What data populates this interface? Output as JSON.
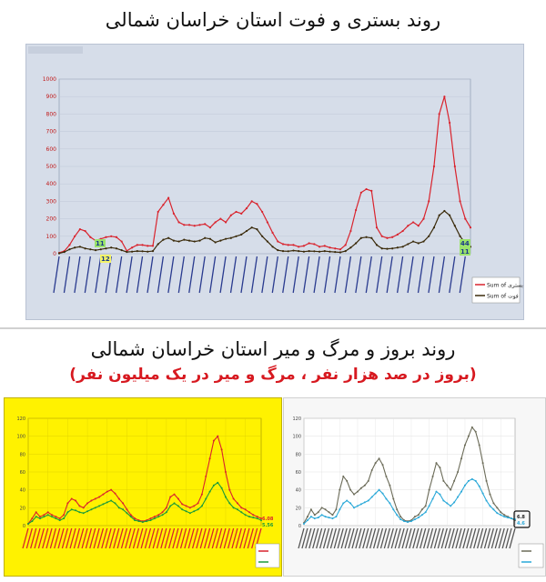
{
  "title_top": "روند بستری و فوت استان خراسان شمالی",
  "title_bottom": "روند بروز و مرگ و میر استان خراسان شمالی",
  "subtitle_bottom": "(بروز در صد هزار نفر ، مرگ و میر در یک میلیون نفر)",
  "chart_data": [
    {
      "type": "line",
      "ylim": [
        0,
        1000
      ],
      "yticks": [
        0,
        100,
        200,
        300,
        400,
        500,
        600,
        700,
        800,
        900,
        1000
      ],
      "grid": true,
      "legend_position": "right",
      "x": [
        1,
        2,
        3,
        4,
        5,
        6,
        7,
        8,
        9,
        10,
        11,
        12,
        13,
        14,
        15,
        16,
        17,
        18,
        19,
        20,
        21,
        22,
        23,
        24,
        25,
        26,
        27,
        28,
        29,
        30,
        31,
        32,
        33,
        34,
        35,
        36,
        37,
        38,
        39,
        40,
        41,
        42,
        43,
        44,
        45,
        46,
        47,
        48,
        49,
        50,
        51,
        52,
        53,
        54,
        55,
        56,
        57,
        58,
        59,
        60,
        61,
        62,
        63,
        64,
        65,
        66,
        67,
        68,
        69,
        70,
        71,
        72,
        73,
        74,
        75,
        76,
        77,
        78,
        79,
        80
      ],
      "series": [
        {
          "name": "Sum of بستری",
          "color": "#d9232d",
          "values": [
            5,
            15,
            50,
            100,
            140,
            130,
            95,
            75,
            85,
            95,
            100,
            95,
            70,
            16,
            35,
            50,
            50,
            45,
            45,
            240,
            280,
            320,
            230,
            180,
            165,
            165,
            160,
            165,
            170,
            150,
            180,
            200,
            180,
            220,
            240,
            230,
            260,
            300,
            285,
            240,
            180,
            120,
            70,
            55,
            50,
            50,
            40,
            45,
            60,
            55,
            40,
            45,
            35,
            30,
            25,
            50,
            130,
            250,
            350,
            370,
            360,
            150,
            100,
            90,
            95,
            110,
            130,
            160,
            180,
            160,
            200,
            300,
            500,
            800,
            900,
            750,
            500,
            300,
            200,
            150
          ]
        },
        {
          "name": "Sum of فوت",
          "color": "#3a2a0a",
          "values": [
            2,
            10,
            25,
            35,
            40,
            30,
            25,
            20,
            25,
            30,
            35,
            30,
            20,
            10,
            12,
            15,
            14,
            12,
            15,
            55,
            80,
            90,
            75,
            70,
            80,
            75,
            70,
            75,
            90,
            85,
            65,
            75,
            85,
            90,
            100,
            110,
            130,
            150,
            140,
            100,
            70,
            40,
            20,
            15,
            14,
            18,
            15,
            12,
            15,
            14,
            12,
            15,
            12,
            10,
            8,
            15,
            35,
            60,
            90,
            95,
            90,
            50,
            30,
            28,
            30,
            35,
            40,
            55,
            70,
            60,
            70,
            100,
            150,
            220,
            245,
            220,
            160,
            100,
            60,
            40
          ]
        }
      ],
      "annotations": [
        "11",
        "12",
        "11",
        "44"
      ]
    },
    {
      "type": "line",
      "ylim": [
        0,
        120
      ],
      "yticks": [
        0,
        20,
        40,
        60,
        80,
        100,
        120
      ],
      "grid": true,
      "legend_position": "right",
      "x": [
        1,
        2,
        3,
        4,
        5,
        6,
        7,
        8,
        9,
        10,
        11,
        12,
        13,
        14,
        15,
        16,
        17,
        18,
        19,
        20,
        21,
        22,
        23,
        24,
        25,
        26,
        27,
        28,
        29,
        30,
        31,
        32,
        33,
        34,
        35,
        36,
        37,
        38,
        39,
        40,
        41,
        42,
        43,
        44,
        45,
        46,
        47,
        48,
        49,
        50,
        51,
        52,
        53,
        54,
        55,
        56,
        57,
        58,
        59,
        60
      ],
      "series": [
        {
          "name": "",
          "color": "#d9232d",
          "values": [
            2,
            8,
            15,
            10,
            12,
            15,
            12,
            10,
            8,
            12,
            25,
            30,
            28,
            22,
            20,
            25,
            28,
            30,
            32,
            35,
            38,
            40,
            36,
            30,
            25,
            18,
            12,
            8,
            6,
            5,
            6,
            8,
            10,
            12,
            15,
            20,
            32,
            35,
            30,
            24,
            22,
            20,
            22,
            25,
            35,
            55,
            75,
            95,
            100,
            85,
            60,
            40,
            30,
            25,
            20,
            18,
            15,
            12,
            10,
            8
          ]
        },
        {
          "name": "",
          "color": "#1a9a3a",
          "values": [
            2,
            5,
            10,
            8,
            10,
            12,
            10,
            8,
            6,
            8,
            15,
            18,
            17,
            15,
            14,
            16,
            18,
            20,
            22,
            24,
            26,
            28,
            25,
            20,
            18,
            14,
            10,
            6,
            5,
            4,
            5,
            6,
            8,
            10,
            12,
            15,
            22,
            25,
            22,
            18,
            16,
            14,
            16,
            18,
            22,
            30,
            38,
            45,
            48,
            42,
            32,
            25,
            20,
            18,
            15,
            12,
            10,
            9,
            8,
            6
          ]
        }
      ],
      "annotations": [
        "6.08",
        "5.56"
      ]
    },
    {
      "type": "line",
      "ylim": [
        0,
        120
      ],
      "yticks": [
        0,
        20,
        40,
        60,
        80,
        100,
        120
      ],
      "grid": true,
      "legend_position": "right",
      "x": [
        1,
        2,
        3,
        4,
        5,
        6,
        7,
        8,
        9,
        10,
        11,
        12,
        13,
        14,
        15,
        16,
        17,
        18,
        19,
        20,
        21,
        22,
        23,
        24,
        25,
        26,
        27,
        28,
        29,
        30,
        31,
        32,
        33,
        34,
        35,
        36,
        37,
        38,
        39,
        40,
        41,
        42,
        43,
        44,
        45,
        46,
        47,
        48,
        49,
        50,
        51,
        52,
        53,
        54,
        55,
        56,
        57,
        58,
        59,
        60
      ],
      "series": [
        {
          "name": "",
          "color": "#6b6b58",
          "values": [
            3,
            10,
            18,
            12,
            15,
            20,
            18,
            15,
            12,
            18,
            40,
            55,
            50,
            40,
            35,
            38,
            42,
            45,
            50,
            62,
            70,
            75,
            68,
            55,
            45,
            30,
            18,
            10,
            6,
            5,
            6,
            10,
            12,
            18,
            22,
            40,
            55,
            70,
            65,
            50,
            45,
            40,
            50,
            60,
            75,
            90,
            100,
            110,
            105,
            90,
            70,
            50,
            35,
            25,
            20,
            15,
            12,
            10,
            8,
            6
          ]
        },
        {
          "name": "",
          "color": "#29a8d8",
          "values": [
            2,
            6,
            10,
            8,
            9,
            12,
            10,
            9,
            8,
            10,
            18,
            25,
            28,
            25,
            20,
            22,
            24,
            26,
            28,
            32,
            36,
            40,
            36,
            30,
            25,
            18,
            12,
            7,
            5,
            4,
            5,
            7,
            9,
            12,
            15,
            22,
            30,
            38,
            35,
            28,
            25,
            22,
            26,
            32,
            38,
            45,
            50,
            52,
            50,
            44,
            36,
            28,
            22,
            18,
            14,
            12,
            10,
            9,
            8,
            7
          ]
        }
      ],
      "annotations": [
        "6.8",
        "4.6"
      ]
    }
  ]
}
